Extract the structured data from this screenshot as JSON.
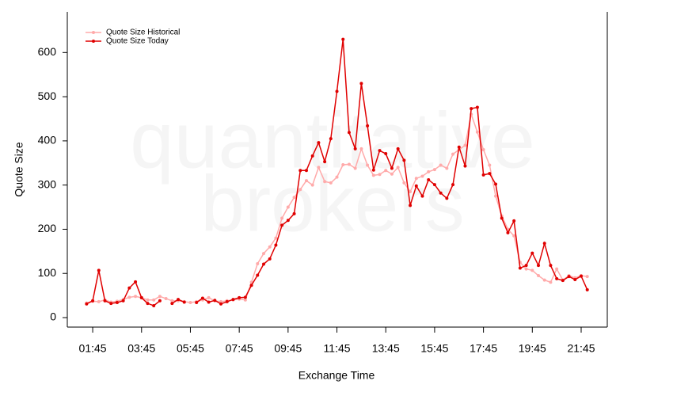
{
  "chart_data": {
    "type": "line",
    "watermark": [
      "quantitative",
      "brokers"
    ],
    "xlabel": "Exchange Time",
    "ylabel": "Quote Size",
    "x": [
      1.5,
      1.75,
      2,
      2.25,
      2.5,
      2.75,
      3,
      3.25,
      3.5,
      3.75,
      4,
      4.25,
      4.5,
      4.75,
      5,
      5.25,
      5.5,
      5.75,
      6,
      6.25,
      6.5,
      6.75,
      7,
      7.25,
      7.5,
      7.75,
      8,
      8.25,
      8.5,
      8.75,
      9,
      9.25,
      9.5,
      9.75,
      10,
      10.25,
      10.5,
      10.75,
      11,
      11.25,
      11.5,
      11.75,
      12,
      12.25,
      12.5,
      12.75,
      13,
      13.25,
      13.5,
      13.75,
      14,
      14.25,
      14.5,
      14.75,
      15,
      15.25,
      15.5,
      15.75,
      16,
      16.25,
      16.5,
      16.75,
      17,
      17.25,
      17.5,
      17.75,
      18,
      18.25,
      18.5,
      18.75,
      19,
      19.25,
      19.5,
      19.75,
      20,
      20.25,
      20.5,
      20.75,
      21,
      21.25,
      21.5,
      21.75,
      22
    ],
    "series": [
      {
        "name": "Quote Size Historical",
        "color": "#ffaaaa",
        "values": [
          33,
          37,
          36,
          40,
          35,
          37,
          41,
          46,
          48,
          45,
          40,
          40,
          48,
          43,
          38,
          38,
          36,
          34,
          36,
          40,
          45,
          38,
          36,
          38,
          40,
          42,
          40,
          80,
          122,
          145,
          160,
          180,
          225,
          250,
          272,
          290,
          310,
          300,
          340,
          308,
          305,
          318,
          346,
          347,
          338,
          382,
          345,
          322,
          324,
          333,
          325,
          340,
          305,
          285,
          315,
          320,
          330,
          335,
          345,
          338,
          370,
          380,
          390,
          460,
          420,
          380,
          345,
          275,
          230,
          200,
          185,
          125,
          110,
          107,
          95,
          85,
          80,
          110,
          85,
          95,
          90,
          95,
          93
        ]
      },
      {
        "name": "Quote Size Today",
        "color": "#e00000",
        "values": [
          31,
          38,
          107,
          38,
          32,
          34,
          38,
          67,
          81,
          45,
          32,
          27,
          38,
          null,
          32,
          41,
          35,
          null,
          34,
          44,
          35,
          39,
          31,
          36,
          41,
          45,
          46,
          73,
          96,
          121,
          133,
          164,
          209,
          220,
          235,
          333,
          333,
          366,
          396,
          353,
          405,
          512,
          630,
          419,
          382,
          530,
          434,
          334,
          378,
          371,
          338,
          382,
          356,
          254,
          298,
          275,
          312,
          301,
          282,
          270,
          301,
          386,
          343,
          473,
          476,
          323,
          326,
          302,
          225,
          192,
          219,
          112,
          118,
          146,
          118,
          168,
          118,
          88,
          84,
          93,
          86,
          94,
          63
        ]
      }
    ],
    "xlim": [
      0.71,
      22.82
    ],
    "xticks": [
      {
        "value": 1.75,
        "label": "01:45"
      },
      {
        "value": 3.75,
        "label": "03:45"
      },
      {
        "value": 5.75,
        "label": "05:45"
      },
      {
        "value": 7.75,
        "label": "07:45"
      },
      {
        "value": 9.75,
        "label": "09:45"
      },
      {
        "value": 11.75,
        "label": "11:45"
      },
      {
        "value": 13.75,
        "label": "13:45"
      },
      {
        "value": 15.75,
        "label": "15:45"
      },
      {
        "value": 17.75,
        "label": "17:45"
      },
      {
        "value": 19.75,
        "label": "19:45"
      },
      {
        "value": 21.75,
        "label": "21:45"
      }
    ],
    "ylim": [
      -21.5,
      692
    ],
    "yticks": [
      0,
      100,
      200,
      300,
      400,
      500,
      600
    ],
    "legend": "top-left"
  }
}
